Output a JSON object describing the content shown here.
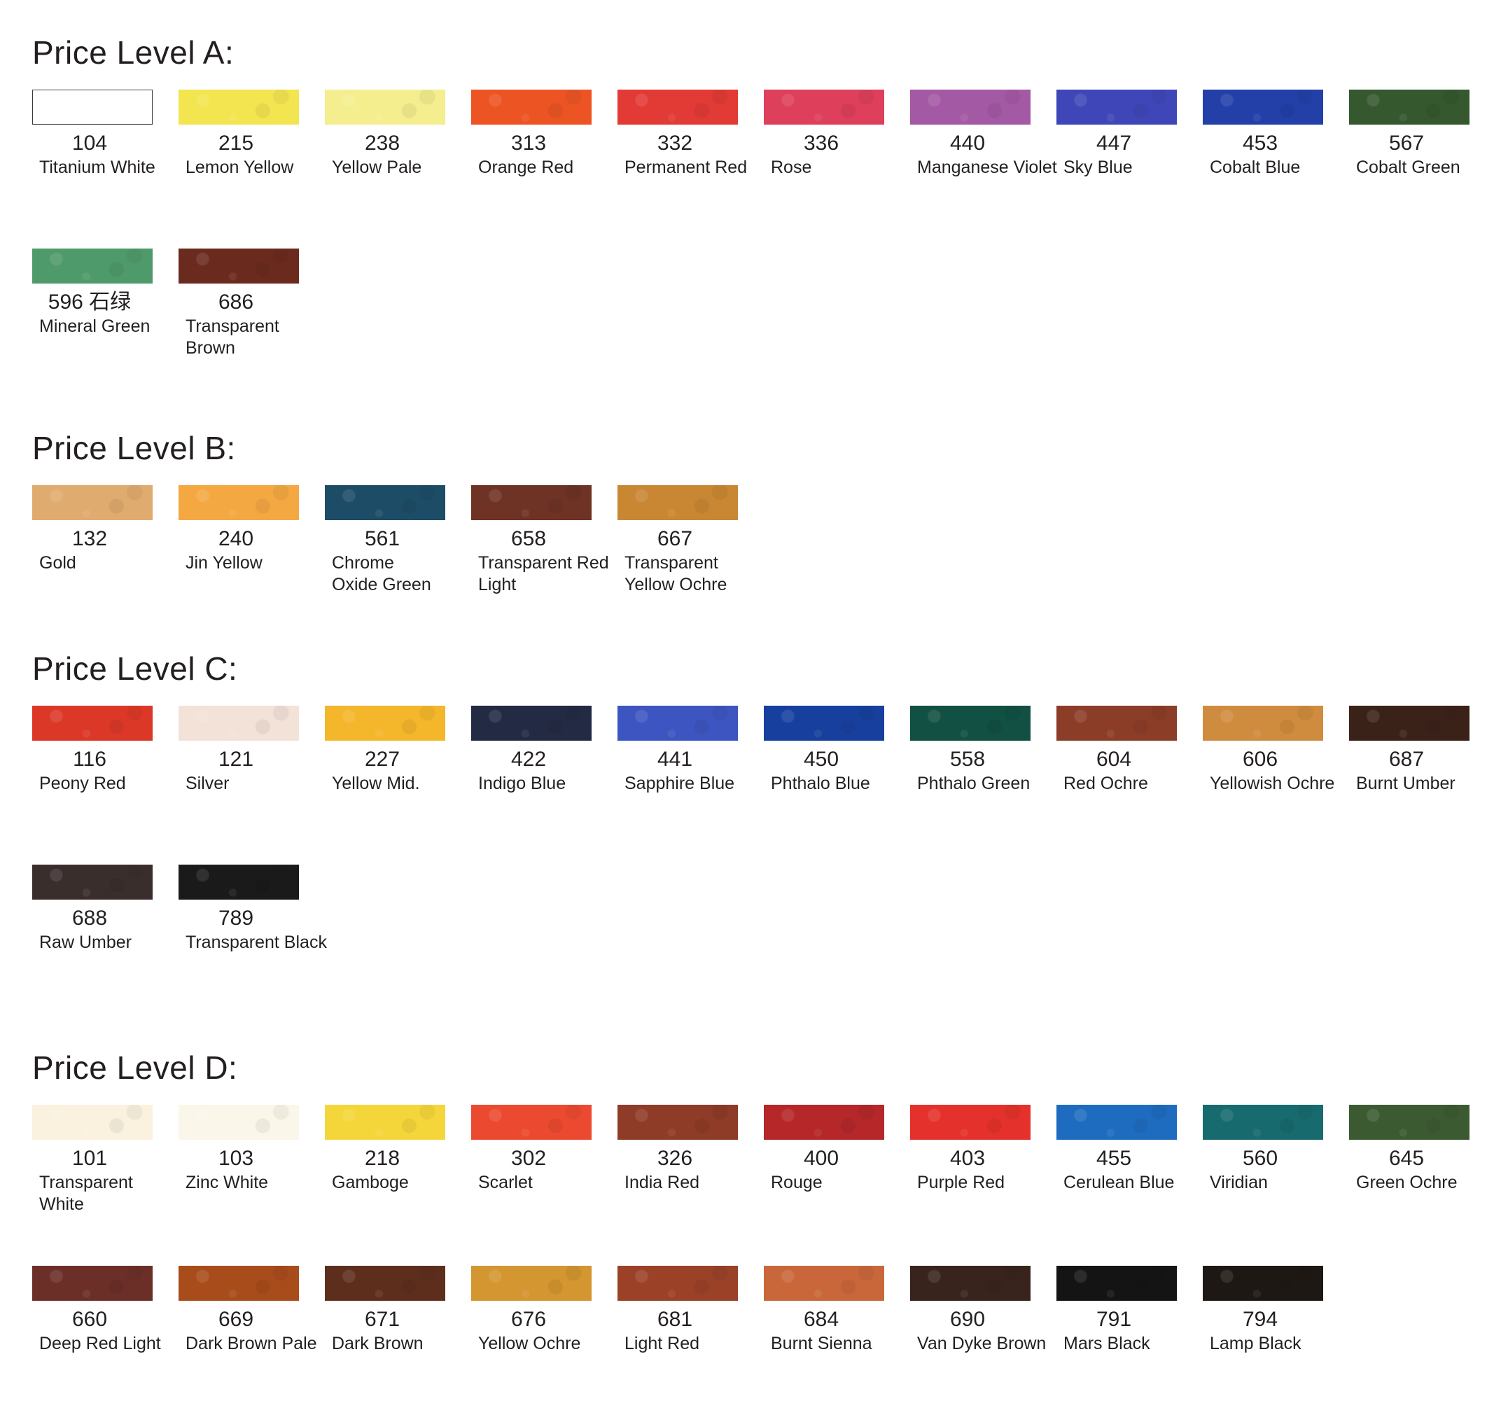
{
  "sections": [
    {
      "title": "Price Level A:",
      "rows": [
        [
          {
            "code": "104",
            "name": "Titanium White",
            "color": "#ffffff",
            "outlined": true
          },
          {
            "code": "215",
            "name": "Lemon Yellow",
            "color": "#f3e550"
          },
          {
            "code": "238",
            "name": "Yellow Pale",
            "color": "#f4ee8e"
          },
          {
            "code": "313",
            "name": "Orange Red",
            "color": "#ec5424"
          },
          {
            "code": "332",
            "name": "Permanent Red",
            "color": "#e23a35"
          },
          {
            "code": "336",
            "name": "Rose",
            "color": "#de3f5a"
          },
          {
            "code": "440",
            "name": "Manganese Violet",
            "color": "#a459a4"
          },
          {
            "code": "447",
            "name": "Sky Blue",
            "color": "#3f47b8"
          },
          {
            "code": "453",
            "name": "Cobalt Blue",
            "color": "#2240a8"
          },
          {
            "code": "567",
            "name": "Cobalt Green",
            "color": "#35582f"
          }
        ],
        [
          {
            "code": "596 石绿",
            "name": "Mineral Green",
            "color": "#4f9a6b"
          },
          {
            "code": "686",
            "name": "Transparent Brown",
            "color": "#6b2a1e"
          }
        ]
      ]
    },
    {
      "title": "Price Level B:",
      "rows": [
        [
          {
            "code": "132",
            "name": "Gold",
            "color": "#e0ab6e"
          },
          {
            "code": "240",
            "name": "Jin Yellow",
            "color": "#f4a842"
          },
          {
            "code": "561",
            "name": "Chrome Oxide Green",
            "color": "#1d4c66"
          },
          {
            "code": "658",
            "name": "Transparent Red Light",
            "color": "#6e3325"
          },
          {
            "code": "667",
            "name": "Transparent Yellow Ochre",
            "color": "#c98733"
          }
        ]
      ]
    },
    {
      "title": "Price Level C:",
      "rows": [
        [
          {
            "code": "116",
            "name": "Peony Red",
            "color": "#dc3828"
          },
          {
            "code": "121",
            "name": "Silver",
            "color": "#f3e2d8"
          },
          {
            "code": "227",
            "name": "Yellow Mid.",
            "color": "#f4b72b"
          },
          {
            "code": "422",
            "name": "Indigo Blue",
            "color": "#232a44"
          },
          {
            "code": "441",
            "name": "Sapphire Blue",
            "color": "#3d55c0"
          },
          {
            "code": "450",
            "name": "Phthalo Blue",
            "color": "#17409e"
          },
          {
            "code": "558",
            "name": "Phthalo Green",
            "color": "#115042"
          },
          {
            "code": "604",
            "name": "Red Ochre",
            "color": "#8c3d28"
          },
          {
            "code": "606",
            "name": "Yellowish Ochre",
            "color": "#cf8c3e"
          },
          {
            "code": "687",
            "name": "Burnt Umber",
            "color": "#3b2219"
          }
        ],
        [
          {
            "code": "688",
            "name": "Raw Umber",
            "color": "#3a2e2c"
          },
          {
            "code": "789",
            "name": "Transparent Black",
            "color": "#1a1a1a"
          }
        ]
      ]
    },
    {
      "title": "Price Level D:",
      "rows": [
        [
          {
            "code": "101",
            "name": "Transparent White",
            "color": "#faf2df"
          },
          {
            "code": "103",
            "name": "Zinc White",
            "color": "#fbf6ea"
          },
          {
            "code": "218",
            "name": "Gamboge",
            "color": "#f5d63a"
          },
          {
            "code": "302",
            "name": "Scarlet",
            "color": "#eb4a30"
          },
          {
            "code": "326",
            "name": "India Red",
            "color": "#8e3b27"
          },
          {
            "code": "400",
            "name": "Rouge",
            "color": "#b52729"
          },
          {
            "code": "403",
            "name": "Purple Red",
            "color": "#e4312b"
          },
          {
            "code": "455",
            "name": "Cerulean Blue",
            "color": "#1e6cc0"
          },
          {
            "code": "560",
            "name": "Viridian",
            "color": "#176a6e"
          },
          {
            "code": "645",
            "name": "Green Ochre",
            "color": "#3c5a32"
          }
        ],
        [
          {
            "code": "660",
            "name": "Deep Red Light",
            "color": "#6b2f28"
          },
          {
            "code": "669",
            "name": "Dark Brown Pale",
            "color": "#a84c1c"
          },
          {
            "code": "671",
            "name": "Dark Brown",
            "color": "#5e2e1c"
          },
          {
            "code": "676",
            "name": "Yellow Ochre",
            "color": "#d39630"
          },
          {
            "code": "681",
            "name": "Light Red",
            "color": "#9b4128"
          },
          {
            "code": "684",
            "name": "Burnt Sienna",
            "color": "#c9673b"
          },
          {
            "code": "690",
            "name": "Van Dyke Brown",
            "color": "#38241d"
          },
          {
            "code": "791",
            "name": "Mars Black",
            "color": "#141414"
          },
          {
            "code": "794",
            "name": "Lamp Black",
            "color": "#1e1814"
          }
        ]
      ]
    }
  ]
}
